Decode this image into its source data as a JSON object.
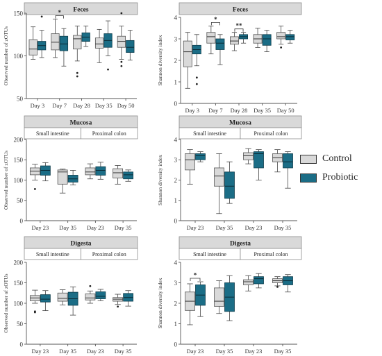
{
  "colors": {
    "control": "#d9d9d9",
    "probiotic": "#1b6d86",
    "header": "#d9d9d9"
  },
  "legend": [
    {
      "label": "Control",
      "color": "#d9d9d9"
    },
    {
      "label": "Probiotic",
      "color": "#1b6d86"
    }
  ],
  "chart_data": [
    {
      "type": "boxplot",
      "title": "Feces",
      "ylabel": "Observed number of zOTUs",
      "ylim": [
        50,
        150
      ],
      "yticks": [
        50,
        100,
        150
      ],
      "categories": [
        "Day 3",
        "Day 7",
        "Day 28",
        "Day 35",
        "Day 50"
      ],
      "groups": [],
      "series": [
        {
          "group": "control",
          "boxes": [
            {
              "min": 96,
              "q1": 101,
              "median": 108,
              "q3": 119,
              "max": 134,
              "outliers": []
            },
            {
              "min": 98,
              "q1": 107,
              "median": 116,
              "q3": 126,
              "max": 143,
              "outliers": []
            },
            {
              "min": 94,
              "q1": 108,
              "median": 120,
              "q3": 124,
              "max": 135,
              "outliers": [
                80,
                76
              ]
            },
            {
              "min": 92,
              "q1": 109,
              "median": 114,
              "q3": 121,
              "max": 131,
              "outliers": []
            },
            {
              "min": 96,
              "q1": 110,
              "median": 117,
              "q3": 123,
              "max": 135,
              "outliers": [
                150,
                93,
                88
              ]
            }
          ]
        },
        {
          "group": "probiotic",
          "boxes": [
            {
              "min": 98,
              "q1": 107,
              "median": 112,
              "q3": 117,
              "max": 130,
              "outliers": [
                146
              ]
            },
            {
              "min": 88,
              "q1": 106,
              "median": 114,
              "q3": 123,
              "max": 132,
              "outliers": []
            },
            {
              "min": 111,
              "q1": 117,
              "median": 122,
              "q3": 127,
              "max": 135,
              "outliers": []
            },
            {
              "min": 100,
              "q1": 110,
              "median": 118,
              "q3": 126,
              "max": 141,
              "outliers": [
                84
              ]
            },
            {
              "min": 95,
              "q1": 104,
              "median": 110,
              "q3": 118,
              "max": 130,
              "outliers": []
            }
          ]
        }
      ],
      "significance": [
        {
          "category": 1,
          "label": "*"
        }
      ]
    },
    {
      "type": "boxplot",
      "title": "Feces",
      "ylabel": "Shannon diversity index",
      "ylim": [
        0,
        4
      ],
      "yticks": [
        0,
        1,
        2,
        3,
        4
      ],
      "categories": [
        "Day 3",
        "Day 7",
        "Day 28",
        "Day 35",
        "Day 50"
      ],
      "groups": [],
      "series": [
        {
          "group": "control",
          "boxes": [
            {
              "min": 0.7,
              "q1": 1.7,
              "median": 2.4,
              "q3": 2.9,
              "max": 3.3,
              "outliers": []
            },
            {
              "min": 2.3,
              "q1": 2.8,
              "median": 3.1,
              "q3": 3.3,
              "max": 3.6,
              "outliers": []
            },
            {
              "min": 2.45,
              "q1": 2.75,
              "median": 2.9,
              "q3": 3.1,
              "max": 3.3,
              "outliers": []
            },
            {
              "min": 2.6,
              "q1": 2.8,
              "median": 3.0,
              "q3": 3.2,
              "max": 3.5,
              "outliers": []
            },
            {
              "min": 2.75,
              "q1": 3.0,
              "median": 3.1,
              "q3": 3.3,
              "max": 3.6,
              "outliers": [
                2.6
              ]
            }
          ]
        },
        {
          "group": "probiotic",
          "boxes": [
            {
              "min": 1.75,
              "q1": 2.3,
              "median": 2.5,
              "q3": 2.7,
              "max": 3.2,
              "outliers": [
                1.2,
                0.9
              ]
            },
            {
              "min": 1.8,
              "q1": 2.5,
              "median": 2.8,
              "q3": 3.0,
              "max": 3.2,
              "outliers": []
            },
            {
              "min": 2.8,
              "q1": 3.0,
              "median": 3.1,
              "q3": 3.2,
              "max": 3.3,
              "outliers": []
            },
            {
              "min": 2.4,
              "q1": 2.7,
              "median": 3.0,
              "q3": 3.2,
              "max": 3.4,
              "outliers": []
            },
            {
              "min": 2.8,
              "q1": 2.95,
              "median": 3.1,
              "q3": 3.2,
              "max": 3.4,
              "outliers": []
            }
          ]
        }
      ],
      "significance": [
        {
          "category": 1,
          "label": "*"
        },
        {
          "category": 2,
          "label": "**"
        }
      ]
    },
    {
      "type": "boxplot",
      "title": "Mucosa",
      "ylabel": "Observed number of zOTUs",
      "ylim": [
        0,
        200
      ],
      "yticks": [
        0,
        50,
        100,
        150,
        200
      ],
      "categories": [
        "Day 23",
        "Day 35",
        "Day 23",
        "Day 35"
      ],
      "groups": [
        "Small intestine",
        "Proximal colon"
      ],
      "series": [
        {
          "group": "control",
          "boxes": [
            {
              "min": 100,
              "q1": 113,
              "median": 122,
              "q3": 130,
              "max": 139,
              "outliers": [
                78
              ]
            },
            {
              "min": 68,
              "q1": 90,
              "median": 120,
              "q3": 125,
              "max": 127,
              "outliers": []
            },
            {
              "min": 103,
              "q1": 113,
              "median": 120,
              "q3": 130,
              "max": 140,
              "outliers": []
            },
            {
              "min": 90,
              "q1": 105,
              "median": 118,
              "q3": 128,
              "max": 136,
              "outliers": []
            }
          ]
        },
        {
          "group": "probiotic",
          "boxes": [
            {
              "min": 98,
              "q1": 112,
              "median": 124,
              "q3": 135,
              "max": 143,
              "outliers": []
            },
            {
              "min": 88,
              "q1": 95,
              "median": 103,
              "q3": 112,
              "max": 124,
              "outliers": []
            },
            {
              "min": 102,
              "q1": 112,
              "median": 124,
              "q3": 133,
              "max": 144,
              "outliers": []
            },
            {
              "min": 97,
              "q1": 103,
              "median": 113,
              "q3": 120,
              "max": 125,
              "outliers": []
            }
          ]
        }
      ],
      "significance": []
    },
    {
      "type": "boxplot",
      "title": "Mucosa",
      "ylabel": "Shannon diversity index",
      "ylim": [
        0,
        4
      ],
      "yticks": [
        0,
        1,
        2,
        3,
        4
      ],
      "categories": [
        "Day 23",
        "Day 35",
        "Day 23",
        "Day 35"
      ],
      "groups": [
        "Small intestine",
        "Proximal colon"
      ],
      "series": [
        {
          "group": "control",
          "boxes": [
            {
              "min": 1.8,
              "q1": 2.5,
              "median": 3.0,
              "q3": 3.3,
              "max": 3.5,
              "outliers": []
            },
            {
              "min": 0.35,
              "q1": 1.7,
              "median": 2.2,
              "q3": 2.6,
              "max": 3.3,
              "outliers": []
            },
            {
              "min": 2.8,
              "q1": 3.0,
              "median": 3.2,
              "q3": 3.35,
              "max": 3.55,
              "outliers": []
            },
            {
              "min": 2.4,
              "q1": 2.9,
              "median": 3.1,
              "q3": 3.3,
              "max": 3.5,
              "outliers": []
            }
          ]
        },
        {
          "group": "probiotic",
          "boxes": [
            {
              "min": 2.9,
              "q1": 3.0,
              "median": 3.2,
              "q3": 3.3,
              "max": 3.4,
              "outliers": []
            },
            {
              "min": 0.85,
              "q1": 1.1,
              "median": 1.7,
              "q3": 2.4,
              "max": 2.9,
              "outliers": []
            },
            {
              "min": 2.0,
              "q1": 2.6,
              "median": 3.3,
              "q3": 3.4,
              "max": 3.5,
              "outliers": []
            },
            {
              "min": 1.6,
              "q1": 2.6,
              "median": 2.9,
              "q3": 3.3,
              "max": 3.4,
              "outliers": []
            }
          ]
        }
      ],
      "significance": []
    },
    {
      "type": "boxplot",
      "title": "Digesta",
      "ylabel": "Observed number of zOTUs",
      "ylim": [
        0,
        200
      ],
      "yticks": [
        0,
        50,
        100,
        150,
        200
      ],
      "categories": [
        "Day 23",
        "Day 35",
        "Day 23",
        "Day 35"
      ],
      "groups": [
        "Small intestine",
        "Proximal colon"
      ],
      "series": [
        {
          "group": "control",
          "boxes": [
            {
              "min": 100,
              "q1": 106,
              "median": 113,
              "q3": 119,
              "max": 132,
              "outliers": [
                80,
                78
              ]
            },
            {
              "min": 96,
              "q1": 105,
              "median": 112,
              "q3": 125,
              "max": 133,
              "outliers": []
            },
            {
              "min": 100,
              "q1": 108,
              "median": 113,
              "q3": 123,
              "max": 130,
              "outliers": [
                142
              ]
            },
            {
              "min": 97,
              "q1": 105,
              "median": 110,
              "q3": 114,
              "max": 122,
              "outliers": [
                92
              ]
            }
          ]
        },
        {
          "group": "probiotic",
          "boxes": [
            {
              "min": 82,
              "q1": 103,
              "median": 110,
              "q3": 121,
              "max": 131,
              "outliers": []
            },
            {
              "min": 71,
              "q1": 95,
              "median": 111,
              "q3": 127,
              "max": 140,
              "outliers": []
            },
            {
              "min": 106,
              "q1": 111,
              "median": 117,
              "q3": 128,
              "max": 134,
              "outliers": []
            },
            {
              "min": 93,
              "q1": 105,
              "median": 114,
              "q3": 124,
              "max": 131,
              "outliers": []
            }
          ]
        }
      ],
      "significance": []
    },
    {
      "type": "boxplot",
      "title": "Digesta",
      "ylabel": "Shannon diversity index",
      "ylim": [
        0,
        4
      ],
      "yticks": [
        0,
        1,
        2,
        3,
        4
      ],
      "categories": [
        "Day 23",
        "Day 35",
        "Day 23",
        "Day 35"
      ],
      "groups": [
        "Small intestine",
        "Proximal colon"
      ],
      "series": [
        {
          "group": "control",
          "boxes": [
            {
              "min": 0.95,
              "q1": 1.65,
              "median": 2.1,
              "q3": 2.55,
              "max": 2.95,
              "outliers": []
            },
            {
              "min": 1.5,
              "q1": 1.85,
              "median": 2.1,
              "q3": 2.75,
              "max": 3.1,
              "outliers": []
            },
            {
              "min": 2.6,
              "q1": 2.9,
              "median": 3.05,
              "q3": 3.15,
              "max": 3.35,
              "outliers": []
            },
            {
              "min": 2.85,
              "q1": 3.0,
              "median": 3.1,
              "q3": 3.2,
              "max": 3.3,
              "outliers": [
                2.8
              ]
            }
          ]
        },
        {
          "group": "probiotic",
          "boxes": [
            {
              "min": 1.35,
              "q1": 1.9,
              "median": 2.4,
              "q3": 2.9,
              "max": 3.05,
              "outliers": []
            },
            {
              "min": 1.15,
              "q1": 1.6,
              "median": 2.3,
              "q3": 3.0,
              "max": 3.35,
              "outliers": []
            },
            {
              "min": 2.75,
              "q1": 2.95,
              "median": 3.2,
              "q3": 3.3,
              "max": 3.45,
              "outliers": []
            },
            {
              "min": 2.55,
              "q1": 2.9,
              "median": 3.1,
              "q3": 3.3,
              "max": 3.4,
              "outliers": []
            }
          ]
        }
      ],
      "significance": [
        {
          "category": 0,
          "label": "*"
        }
      ]
    }
  ]
}
